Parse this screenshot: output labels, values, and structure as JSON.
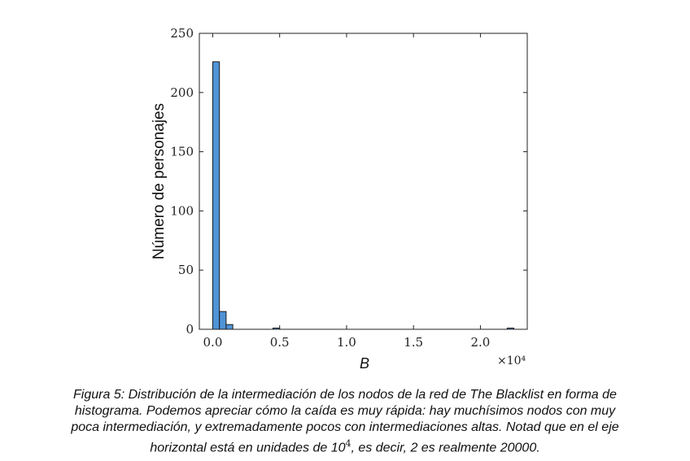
{
  "chart_data": {
    "type": "bar",
    "xlabel": "B",
    "ylabel": "Número de personajes",
    "x_multiplier_label": "×10⁴",
    "xlim": [
      -0.1,
      2.35
    ],
    "ylim": [
      0,
      250
    ],
    "xticks": [
      0,
      0.5,
      1,
      1.5,
      2
    ],
    "xtick_labels": [
      "0.0",
      "0.5",
      "1.0",
      "1.5",
      "2.0"
    ],
    "yticks": [
      0,
      50,
      100,
      150,
      200,
      250
    ],
    "ytick_labels": [
      "0",
      "50",
      "100",
      "150",
      "200",
      "250"
    ],
    "bin_width": 0.05,
    "bins": [
      {
        "start": 0.0,
        "end": 0.05,
        "count": 226
      },
      {
        "start": 0.05,
        "end": 0.1,
        "count": 15
      },
      {
        "start": 0.1,
        "end": 0.15,
        "count": 4
      },
      {
        "start": 0.45,
        "end": 0.5,
        "count": 1
      },
      {
        "start": 2.2,
        "end": 2.25,
        "count": 1
      }
    ],
    "bar_color": "#4f93d6",
    "grid": false
  },
  "caption": {
    "line1": "Figura 5: Distribución de la intermediación de los nodos de la red de The Blacklist en forma de",
    "line2": "histograma. Podemos apreciar cómo la caída es muy rápida: hay muchísimos nodos con muy",
    "line3": "poca intermediación, y extremadamente pocos con intermediaciones altas. Notad que en el eje",
    "line4_pre": "horizontal está en unidades de 10",
    "line4_exp": "4",
    "line4_post": ", es decir, 2 es realmente 20000."
  }
}
